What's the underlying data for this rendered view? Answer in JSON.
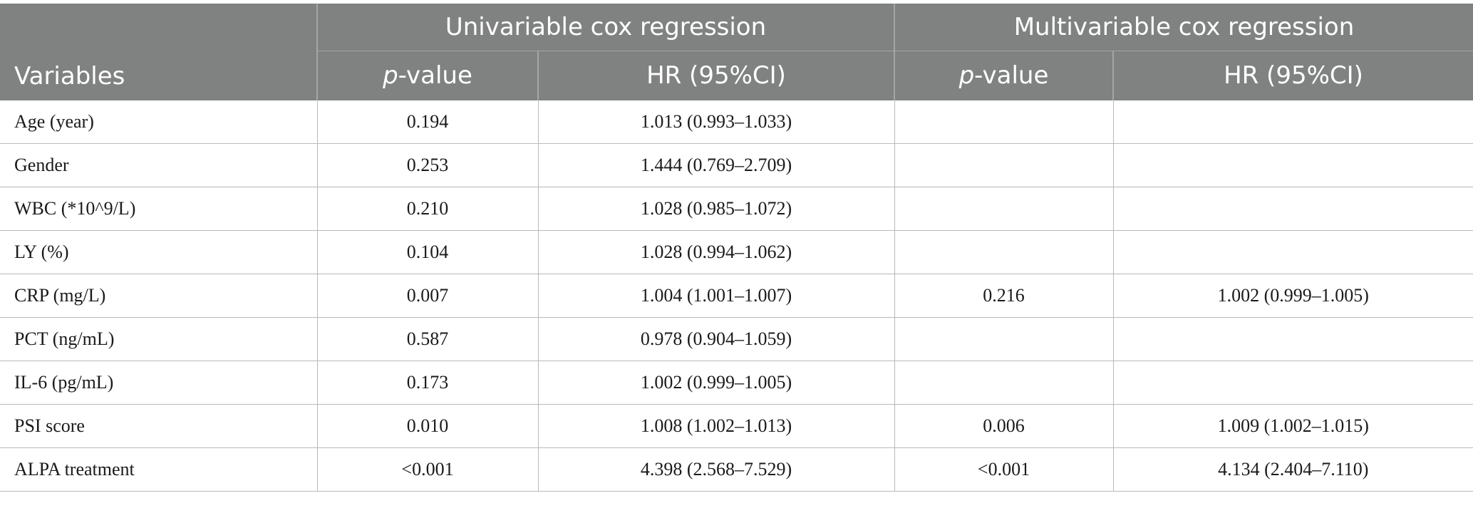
{
  "header": {
    "variables": "Variables",
    "univariable_group": "Univariable cox regression",
    "multivariable_group": "Multivariable cox regression",
    "p_italic": "p",
    "p_suffix": "-value",
    "hr": "HR (95%CI)"
  },
  "rows": [
    {
      "variable": "Age (year)",
      "uni_p": "0.194",
      "uni_hr": "1.013 (0.993–1.033)",
      "multi_p": "",
      "multi_hr": ""
    },
    {
      "variable": "Gender",
      "uni_p": "0.253",
      "uni_hr": "1.444 (0.769–2.709)",
      "multi_p": "",
      "multi_hr": ""
    },
    {
      "variable": "WBC (*10^9/L)",
      "uni_p": "0.210",
      "uni_hr": "1.028 (0.985–1.072)",
      "multi_p": "",
      "multi_hr": ""
    },
    {
      "variable": "LY (%)",
      "uni_p": "0.104",
      "uni_hr": "1.028 (0.994–1.062)",
      "multi_p": "",
      "multi_hr": ""
    },
    {
      "variable": "CRP (mg/L)",
      "uni_p": "0.007",
      "uni_hr": "1.004 (1.001–1.007)",
      "multi_p": "0.216",
      "multi_hr": "1.002 (0.999–1.005)"
    },
    {
      "variable": "PCT (ng/mL)",
      "uni_p": "0.587",
      "uni_hr": "0.978 (0.904–1.059)",
      "multi_p": "",
      "multi_hr": ""
    },
    {
      "variable": "IL-6 (pg/mL)",
      "uni_p": "0.173",
      "uni_hr": "1.002 (0.999–1.005)",
      "multi_p": "",
      "multi_hr": ""
    },
    {
      "variable": "PSI score",
      "uni_p": "0.010",
      "uni_hr": "1.008 (1.002–1.013)",
      "multi_p": "0.006",
      "multi_hr": "1.009 (1.002–1.015)"
    },
    {
      "variable": "ALPA treatment",
      "uni_p": "<0.001",
      "uni_hr": "4.398 (2.568–7.529)",
      "multi_p": "<0.001",
      "multi_hr": "4.134 (2.404–7.110)"
    }
  ]
}
